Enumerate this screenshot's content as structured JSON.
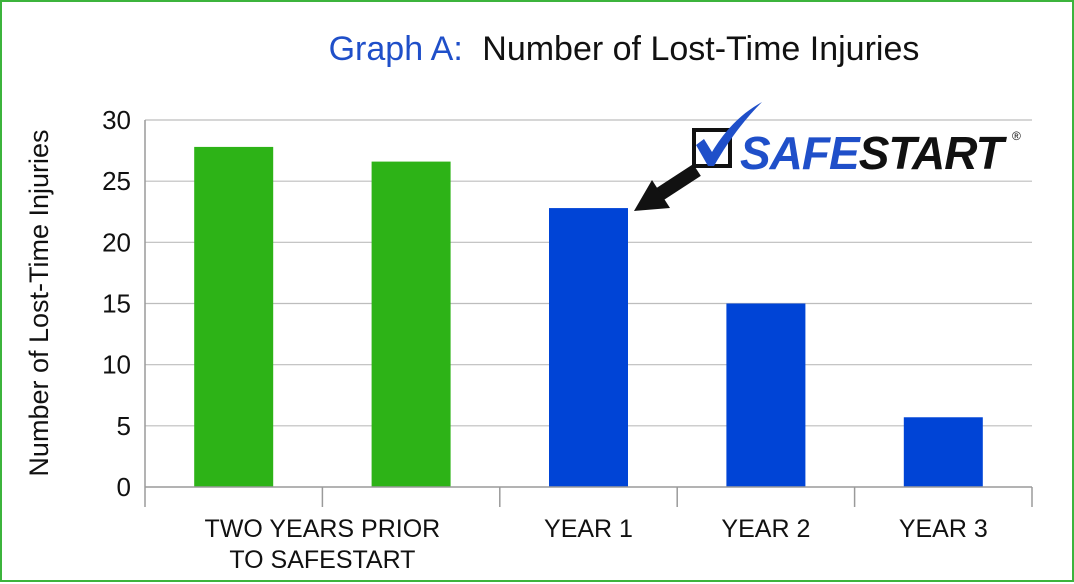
{
  "chart_data": {
    "type": "bar",
    "title_prefix": "Graph A:",
    "title": "Number of Lost-Time Injuries",
    "ylabel": "Number of Lost-Time Injuries",
    "xlabel": "",
    "ylim": [
      0,
      30
    ],
    "yticks": [
      0,
      5,
      10,
      15,
      20,
      25,
      30
    ],
    "grid": true,
    "group_labels": [
      {
        "lines": [
          "TWO YEARS PRIOR",
          "TO SAFESTART"
        ],
        "from": 0,
        "to": 1
      },
      {
        "lines": [
          "YEAR 1"
        ],
        "from": 2,
        "to": 2
      },
      {
        "lines": [
          "YEAR 2"
        ],
        "from": 3,
        "to": 3
      },
      {
        "lines": [
          "YEAR 3"
        ],
        "from": 4,
        "to": 4
      }
    ],
    "values": [
      27.8,
      26.6,
      22.8,
      15.0,
      5.7
    ],
    "bar_colors": [
      "#2db317",
      "#2db317",
      "#0044d6",
      "#0044d6",
      "#0044d6"
    ]
  },
  "logo": {
    "text_prefix": "SAFE",
    "text_suffix": "START",
    "registered": "®",
    "prefix_color": "#1f4fc9",
    "suffix_color": "#111111"
  },
  "colors": {
    "border": "#3cb43c",
    "grid": "#bdbdbd",
    "axis_text": "#111111"
  }
}
